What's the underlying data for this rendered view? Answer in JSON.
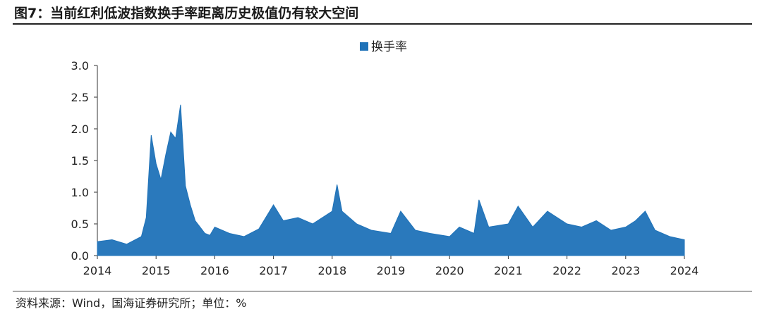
{
  "figure": {
    "title": "图7：当前红利低波指数换手率距离历史极值仍有较大空间",
    "source": "资料来源：Wind，国海证券研究所；单位：%"
  },
  "chart_data": {
    "type": "area",
    "series": [
      {
        "name": "换手率",
        "color": "#1f72b8",
        "x": [
          "2014-01",
          "2014-04",
          "2014-07",
          "2014-10",
          "2014-11",
          "2014-12",
          "2015-01",
          "2015-02",
          "2015-03",
          "2015-04",
          "2015-05",
          "2015-06",
          "2015-07",
          "2015-08",
          "2015-09",
          "2015-10",
          "2015-11",
          "2015-12",
          "2016-01",
          "2016-04",
          "2016-07",
          "2016-10",
          "2017-01",
          "2017-03",
          "2017-06",
          "2017-09",
          "2018-01",
          "2018-02",
          "2018-03",
          "2018-06",
          "2018-09",
          "2019-01",
          "2019-03",
          "2019-06",
          "2019-09",
          "2020-01",
          "2020-03",
          "2020-06",
          "2020-07",
          "2020-09",
          "2021-01",
          "2021-03",
          "2021-06",
          "2021-09",
          "2022-01",
          "2022-04",
          "2022-07",
          "2022-10",
          "2023-01",
          "2023-03",
          "2023-05",
          "2023-07",
          "2023-10",
          "2024-01"
        ],
        "values": [
          0.22,
          0.25,
          0.18,
          0.3,
          0.6,
          1.9,
          1.45,
          1.2,
          1.6,
          1.95,
          1.85,
          2.38,
          1.1,
          0.8,
          0.55,
          0.45,
          0.35,
          0.32,
          0.45,
          0.35,
          0.3,
          0.42,
          0.8,
          0.55,
          0.6,
          0.5,
          0.7,
          1.12,
          0.7,
          0.5,
          0.4,
          0.35,
          0.7,
          0.4,
          0.35,
          0.3,
          0.45,
          0.35,
          0.88,
          0.45,
          0.5,
          0.78,
          0.45,
          0.7,
          0.5,
          0.45,
          0.55,
          0.4,
          0.45,
          0.55,
          0.7,
          0.4,
          0.3,
          0.25
        ]
      }
    ],
    "xlabels": [
      "2014",
      "2015",
      "2016",
      "2017",
      "2018",
      "2019",
      "2020",
      "2021",
      "2022",
      "2023",
      "2024"
    ],
    "yticks": [
      "3.0",
      "2.5",
      "2.0",
      "1.5",
      "1.0",
      "0.5",
      "0.0"
    ],
    "ylim": [
      0,
      3.0
    ],
    "xlim": [
      "2014-01",
      "2024-01"
    ],
    "legend_position": "top-center",
    "grid": false
  }
}
